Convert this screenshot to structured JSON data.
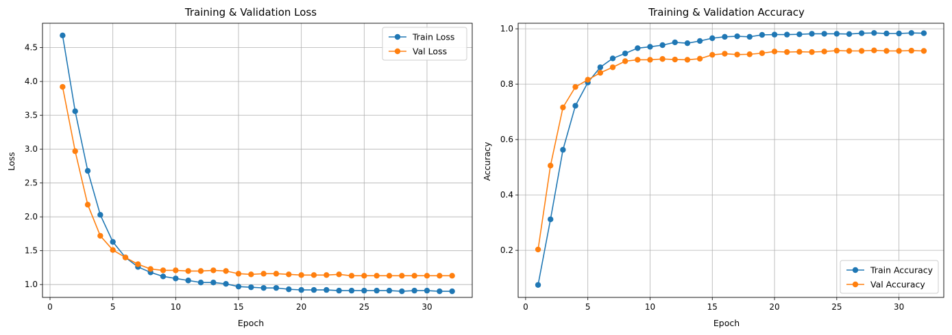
{
  "chart_data": [
    {
      "type": "line",
      "title": "Training & Validation Loss",
      "xlabel": "Epoch",
      "ylabel": "Loss",
      "xlim": [
        -0.6,
        33.6
      ],
      "ylim": [
        0.81,
        4.86
      ],
      "xticks": [
        0,
        5,
        10,
        15,
        20,
        25,
        30
      ],
      "yticks": [
        1.0,
        1.5,
        2.0,
        2.5,
        3.0,
        3.5,
        4.0,
        4.5
      ],
      "ytick_format": "1",
      "grid": true,
      "legend_position": "top-right",
      "x": [
        1,
        2,
        3,
        4,
        5,
        6,
        7,
        8,
        9,
        10,
        11,
        12,
        13,
        14,
        15,
        16,
        17,
        18,
        19,
        20,
        21,
        22,
        23,
        24,
        25,
        26,
        27,
        28,
        29,
        30,
        31,
        32
      ],
      "series": [
        {
          "name": "Train Loss",
          "color": "#1f77b4",
          "values": [
            4.68,
            3.56,
            2.68,
            2.03,
            1.63,
            1.4,
            1.26,
            1.18,
            1.12,
            1.09,
            1.06,
            1.03,
            1.03,
            1.01,
            0.97,
            0.96,
            0.95,
            0.95,
            0.93,
            0.92,
            0.92,
            0.92,
            0.91,
            0.91,
            0.91,
            0.91,
            0.91,
            0.9,
            0.91,
            0.91,
            0.9,
            0.9
          ]
        },
        {
          "name": "Val Loss",
          "color": "#ff7f0e",
          "values": [
            3.92,
            2.97,
            2.18,
            1.72,
            1.51,
            1.4,
            1.3,
            1.23,
            1.21,
            1.21,
            1.2,
            1.2,
            1.21,
            1.2,
            1.16,
            1.15,
            1.16,
            1.16,
            1.15,
            1.14,
            1.14,
            1.14,
            1.15,
            1.13,
            1.13,
            1.13,
            1.13,
            1.13,
            1.13,
            1.13,
            1.13,
            1.13
          ]
        }
      ]
    },
    {
      "type": "line",
      "title": "Training & Validation Accuracy",
      "xlabel": "Epoch",
      "ylabel": "Accuracy",
      "xlim": [
        -0.6,
        33.6
      ],
      "ylim": [
        0.03,
        1.02
      ],
      "xticks": [
        0,
        5,
        10,
        15,
        20,
        25,
        30
      ],
      "yticks": [
        0.2,
        0.4,
        0.6,
        0.8,
        1.0
      ],
      "ytick_format": "1",
      "grid": true,
      "legend_position": "bottom-right",
      "x": [
        1,
        2,
        3,
        4,
        5,
        6,
        7,
        8,
        9,
        10,
        11,
        12,
        13,
        14,
        15,
        16,
        17,
        18,
        19,
        20,
        21,
        22,
        23,
        24,
        25,
        26,
        27,
        28,
        29,
        30,
        31,
        32
      ],
      "series": [
        {
          "name": "Train Accuracy",
          "color": "#1f77b4",
          "values": [
            0.075,
            0.312,
            0.563,
            0.722,
            0.806,
            0.861,
            0.893,
            0.911,
            0.93,
            0.935,
            0.941,
            0.951,
            0.948,
            0.956,
            0.966,
            0.971,
            0.973,
            0.971,
            0.978,
            0.979,
            0.979,
            0.98,
            0.982,
            0.982,
            0.982,
            0.981,
            0.984,
            0.985,
            0.983,
            0.983,
            0.985,
            0.984
          ]
        },
        {
          "name": "Val Accuracy",
          "color": "#ff7f0e",
          "values": [
            0.203,
            0.506,
            0.716,
            0.79,
            0.816,
            0.841,
            0.861,
            0.883,
            0.888,
            0.888,
            0.891,
            0.889,
            0.888,
            0.892,
            0.906,
            0.91,
            0.907,
            0.908,
            0.912,
            0.918,
            0.916,
            0.917,
            0.916,
            0.918,
            0.921,
            0.92,
            0.92,
            0.922,
            0.92,
            0.92,
            0.921,
            0.92
          ]
        }
      ]
    }
  ]
}
